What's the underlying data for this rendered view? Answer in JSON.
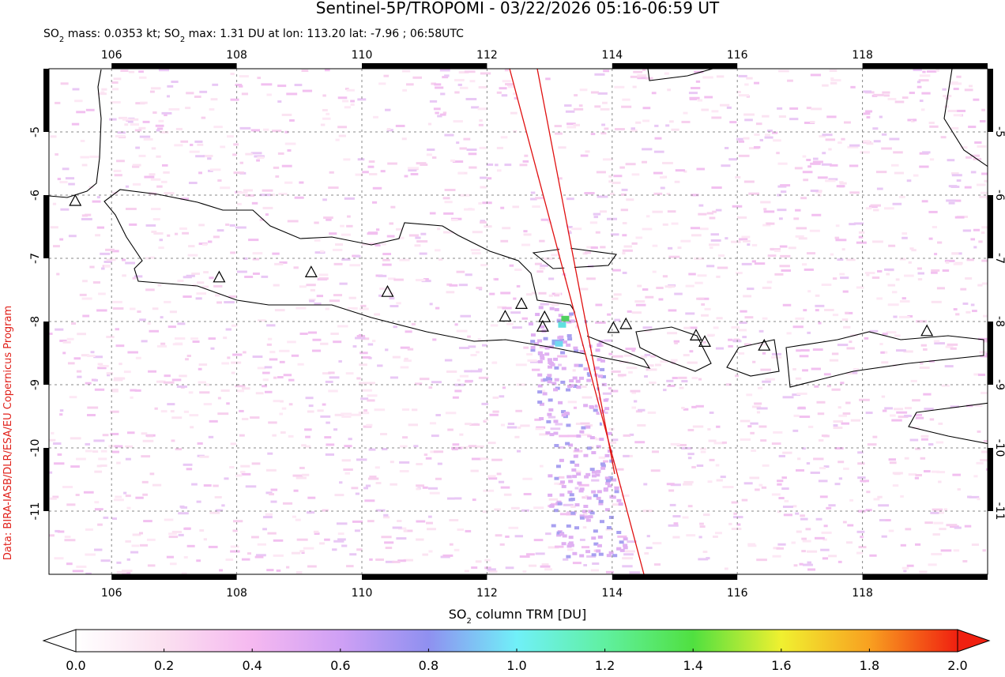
{
  "map": {
    "title": "Sentinel-5P/TROPOMI - 03/22/2026 05:16-06:59 UT",
    "subtitle_parts": [
      "SO",
      "2",
      " mass: 0.0353 kt; SO",
      "2",
      " max: 1.31 DU at lon: 113.20 lat: -7.96 ; 06:58UTC"
    ],
    "credit": "Data: BIRA-IASB/DLR/ESA/EU Copernicus Program",
    "xlim": [
      105,
      120
    ],
    "xticks": [
      106,
      108,
      110,
      112,
      114,
      116,
      118
    ],
    "ylim": [
      -12,
      -4
    ],
    "yticks": [
      -5,
      -6,
      -7,
      -8,
      -9,
      -10,
      -11
    ],
    "grid": true,
    "volcanoes": [
      {
        "lon": 105.42,
        "lat": -6.1
      },
      {
        "lon": 107.72,
        "lat": -7.31
      },
      {
        "lon": 109.19,
        "lat": -7.23
      },
      {
        "lon": 110.41,
        "lat": -7.54
      },
      {
        "lon": 112.29,
        "lat": -7.93
      },
      {
        "lon": 112.55,
        "lat": -7.73
      },
      {
        "lon": 112.92,
        "lat": -7.94
      },
      {
        "lon": 112.89,
        "lat": -8.09
      },
      {
        "lon": 114.02,
        "lat": -8.11
      },
      {
        "lon": 114.22,
        "lat": -8.05
      },
      {
        "lon": 115.34,
        "lat": -8.23
      },
      {
        "lon": 115.48,
        "lat": -8.33
      },
      {
        "lon": 116.43,
        "lat": -8.39
      },
      {
        "lon": 119.03,
        "lat": -8.16
      }
    ],
    "colorbar": {
      "label_parts": [
        "SO",
        "2",
        " column TRM [DU]"
      ],
      "lim": [
        0,
        2
      ],
      "ticks": [
        {
          "value": 0,
          "label": "0.0"
        },
        0.2,
        0.4,
        0.6,
        0.8,
        {
          "value": 1,
          "label": "1.0"
        },
        1.2,
        1.4,
        1.6,
        1.8,
        {
          "value": 2,
          "label": "2.0"
        }
      ]
    }
  }
}
